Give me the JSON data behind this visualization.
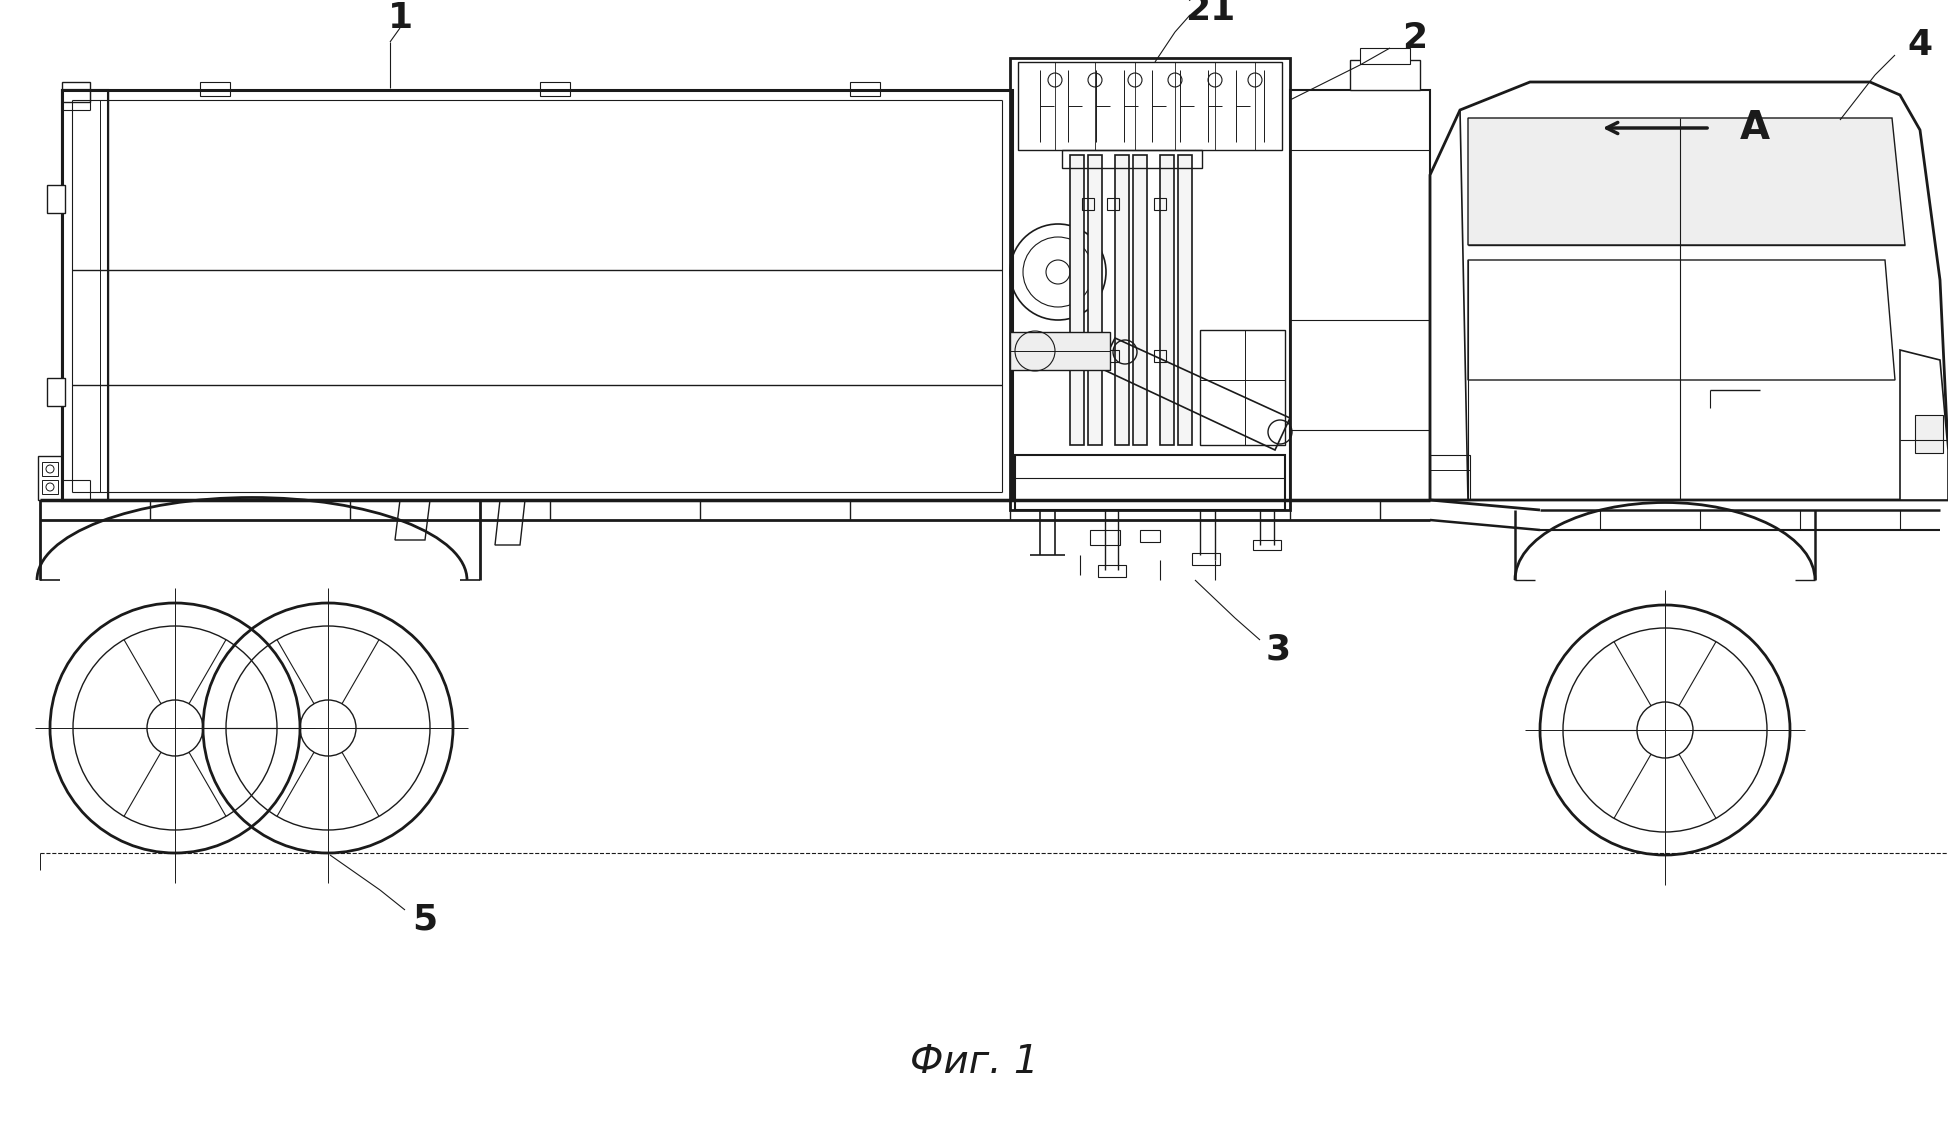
{
  "title": "Фиг. 1",
  "bg": "#ffffff",
  "lc": "#1a1a1a",
  "label_1": "1",
  "label_2": "2",
  "label_3": "3",
  "label_4": "4",
  "label_5": "5",
  "label_21": "21",
  "label_A": "A",
  "fig_width": 19.48,
  "fig_height": 11.32
}
